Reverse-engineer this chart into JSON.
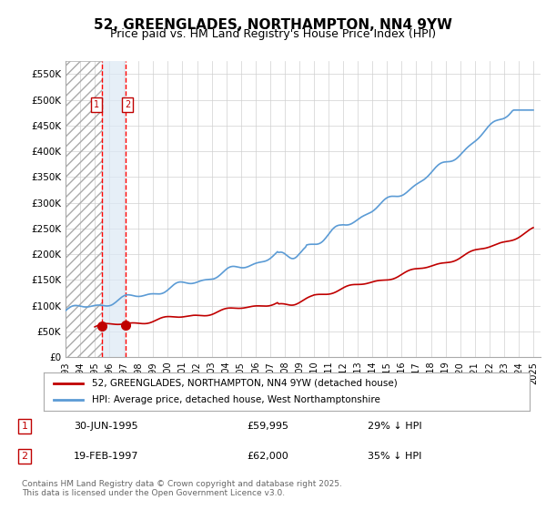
{
  "title": "52, GREENGLADES, NORTHAMPTON, NN4 9YW",
  "subtitle": "Price paid vs. HM Land Registry's House Price Index (HPI)",
  "legend_line1": "52, GREENGLADES, NORTHAMPTON, NN4 9YW (detached house)",
  "legend_line2": "HPI: Average price, detached house, West Northamptonshire",
  "footer": "Contains HM Land Registry data © Crown copyright and database right 2025.\nThis data is licensed under the Open Government Licence v3.0.",
  "transaction1_label": "1",
  "transaction1_date": "30-JUN-1995",
  "transaction1_price": "£59,995",
  "transaction1_hpi": "29% ↓ HPI",
  "transaction2_label": "2",
  "transaction2_date": "19-FEB-1997",
  "transaction2_price": "£62,000",
  "transaction2_hpi": "35% ↓ HPI",
  "transaction1_x": 1995.496,
  "transaction1_y": 59995,
  "transaction2_x": 1997.128,
  "transaction2_y": 62000,
  "vline1_x": 1995.496,
  "vline2_x": 1997.128,
  "hpi_color": "#5B9BD5",
  "price_color": "#C00000",
  "marker_color": "#C00000",
  "vline_color": "#FF0000",
  "hatch_color": "#C0C0C0",
  "background_color": "#FFFFFF",
  "plot_bg_color": "#FFFFFF",
  "grid_color": "#D0D0D0",
  "ylim_min": 0,
  "ylim_max": 575000,
  "xlim_min": 1993.0,
  "xlim_max": 2025.5,
  "yticks": [
    0,
    50000,
    100000,
    150000,
    200000,
    250000,
    300000,
    350000,
    400000,
    450000,
    500000,
    550000
  ],
  "ytick_labels": [
    "£0",
    "£50K",
    "£100K",
    "£150K",
    "£200K",
    "£250K",
    "£300K",
    "£350K",
    "£400K",
    "£450K",
    "£500K",
    "£550K"
  ],
  "xticks": [
    1993,
    1994,
    1995,
    1996,
    1997,
    1998,
    1999,
    2000,
    2001,
    2002,
    2003,
    2004,
    2005,
    2006,
    2007,
    2008,
    2009,
    2010,
    2011,
    2012,
    2013,
    2014,
    2015,
    2016,
    2017,
    2018,
    2019,
    2020,
    2021,
    2022,
    2023,
    2024,
    2025
  ]
}
